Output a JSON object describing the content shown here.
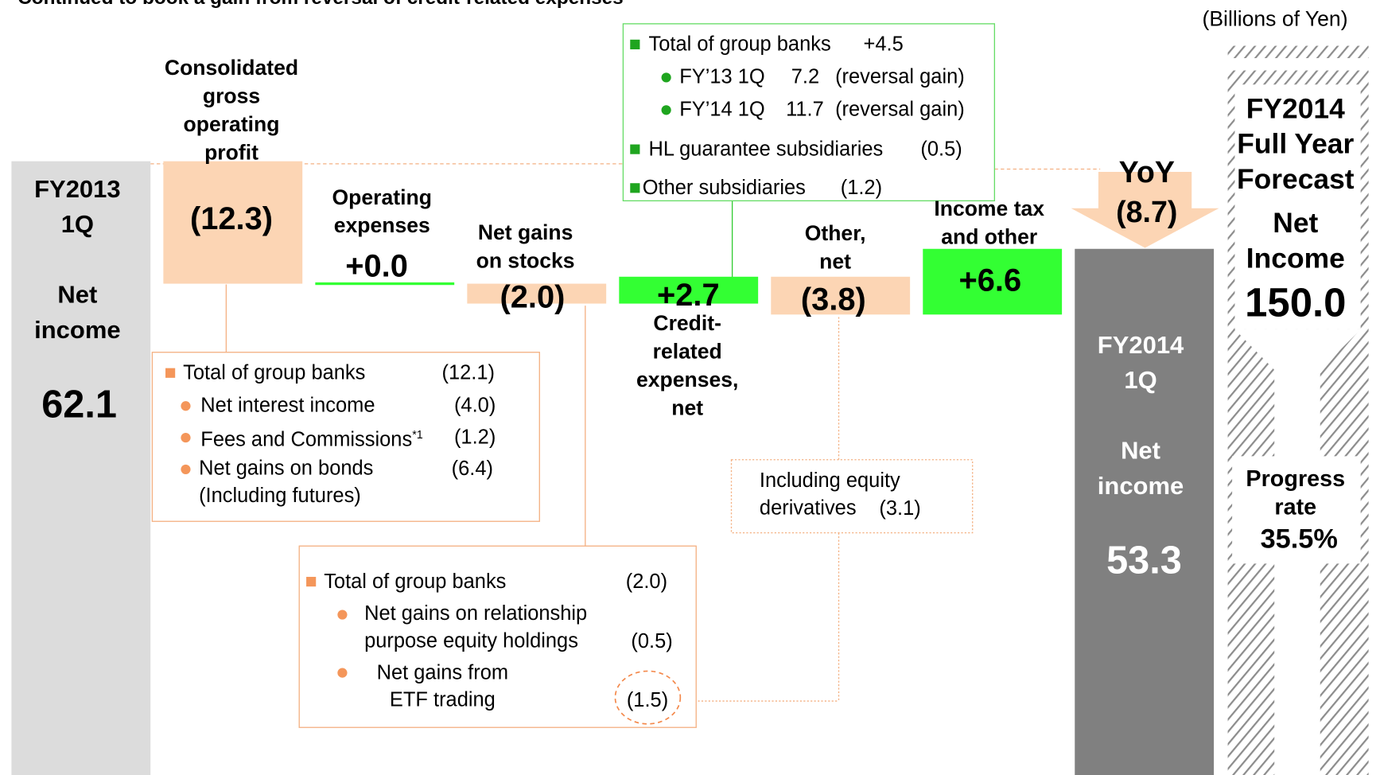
{
  "title": "Continued to book a gain from reversal of credit-related expenses",
  "unit": "(Billions of Yen)",
  "chart_data": {
    "type": "waterfall",
    "categories": [
      "FY2013\n1Q\n\nNet\nincome",
      "Consolidated\ngross\noperating\nprofit",
      "Operating\nexpenses",
      "Net gains\non stocks",
      "Credit-\nrelated\nexpenses,\nnet",
      "Other,\nnet",
      "Income tax\nand other",
      "FY2014\n1Q\n\nNet\nincome"
    ],
    "values": [
      62.1,
      -12.3,
      0,
      -2.0,
      2.7,
      -3.8,
      6.6,
      53.3
    ],
    "value_labels": [
      "62.1",
      "(12.3)",
      "+0.0",
      "(2.0)",
      "+2.7",
      "(3.8)",
      "+6.6",
      "53.3"
    ],
    "colors": {
      "start": "#dcdcdc",
      "end": "#808080",
      "increase": "#33ff33",
      "decrease": "#fcd5b4"
    },
    "ylim": [
      0,
      78.3
    ]
  },
  "yoy": {
    "label": "YoY",
    "value": -8.7,
    "value_label": "(8.7)"
  },
  "forecast": {
    "title": "FY2014\nFull Year\nForecast",
    "metric": "Net\nIncome",
    "value": "150.0",
    "progress_label": "Progress\nrate",
    "progress": "35.5%"
  },
  "notes": {
    "credit": {
      "rows": [
        {
          "label": "Total of group banks",
          "value": "+4.5"
        },
        {
          "label": "FY’13 1Q",
          "value": "7.2",
          "note": "(reversal gain)"
        },
        {
          "label": "FY’14 1Q",
          "value": "11.7",
          "note": "(reversal gain)"
        },
        {
          "label": "HL guarantee subsidiaries",
          "value": "(0.5)"
        },
        {
          "label": "Other subsidiaries",
          "value": "(1.2)"
        }
      ]
    },
    "gross_profit": {
      "rows": [
        {
          "label": "Total of group banks",
          "value": "(12.1)"
        },
        {
          "label": "Net interest income",
          "value": "(4.0)"
        },
        {
          "label": "Fees and Commissions",
          "sup": "*1",
          "value": "(1.2)"
        },
        {
          "label": "Net gains on bonds\n(Including futures)",
          "value": "(6.4)"
        }
      ]
    },
    "other": {
      "text": "Including equity\nderivatives",
      "value": "(3.1)"
    },
    "stocks": {
      "rows": [
        {
          "label": "Total of group banks",
          "value": "(2.0)"
        },
        {
          "label": "Net gains on relationship\npurpose equity holdings",
          "value": "(0.5)"
        },
        {
          "label": "Net gains from\nETF trading",
          "value": "(1.5)"
        }
      ]
    }
  }
}
